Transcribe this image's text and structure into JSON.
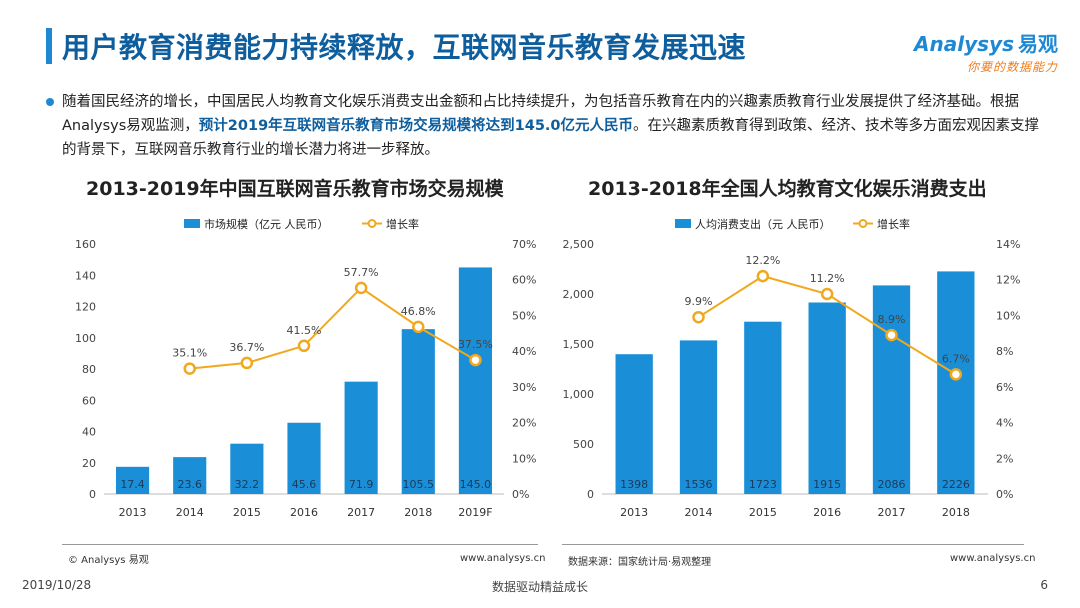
{
  "header": {
    "title": "用户教育消费能力持续释放，互联网音乐教育发展迅速",
    "brand_name": "Analysys",
    "brand_cn": "易观",
    "brand_slogan": "你要的数据能力"
  },
  "intro": {
    "part1": "随着国民经济的增长，中国居民人均教育文化娱乐消费支出金额和占比持续提升，为包括音乐教育在内的兴趣素质教育行业发展提供了经济基础。根据Analysys易观监测，",
    "highlight": "预计2019年互联网音乐教育市场交易规模将达到145.0亿元人民币",
    "part2": "。在兴趣素质教育得到政策、经济、技术等多方面宏观因素支撑的背景下，互联网音乐教育行业的增长潜力将进一步释放。"
  },
  "colors": {
    "bar": "#1a8fd8",
    "line": "#f2a81d",
    "title": "#0e5e9e"
  },
  "chart_data": [
    {
      "type": "bar",
      "title": "2013-2019年中国互联网音乐教育市场交易规模",
      "categories": [
        "2013",
        "2014",
        "2015",
        "2016",
        "2017",
        "2018",
        "2019F"
      ],
      "series": [
        {
          "name": "市场规模（亿元 人民币）",
          "type": "bar",
          "axis": "left",
          "values": [
            17.4,
            23.6,
            32.2,
            45.6,
            71.9,
            105.5,
            145.0
          ],
          "labels": [
            "17.4",
            "23.6",
            "32.2",
            "45.6",
            "71.9",
            "105.5",
            "145.0"
          ]
        },
        {
          "name": "增长率",
          "type": "line",
          "axis": "right",
          "values": [
            null,
            35.1,
            36.7,
            41.5,
            57.7,
            46.8,
            37.5
          ],
          "labels": [
            "",
            "35.1%",
            "36.7%",
            "41.5%",
            "57.7%",
            "46.8%",
            "37.5%"
          ]
        }
      ],
      "ylim": [
        0,
        160
      ],
      "yticks": [
        "0",
        "20",
        "40",
        "60",
        "80",
        "100",
        "120",
        "140",
        "160"
      ],
      "y2lim": [
        0,
        70
      ],
      "y2ticks": [
        "0%",
        "10%",
        "20%",
        "30%",
        "40%",
        "50%",
        "60%",
        "70%"
      ],
      "legend_position": "top",
      "grid": false
    },
    {
      "type": "bar",
      "title": "2013-2018年全国人均教育文化娱乐消费支出",
      "categories": [
        "2013",
        "2014",
        "2015",
        "2016",
        "2017",
        "2018"
      ],
      "series": [
        {
          "name": "人均消费支出（元 人民币）",
          "type": "bar",
          "axis": "left",
          "values": [
            1398,
            1536,
            1723,
            1915,
            2086,
            2226
          ],
          "labels": [
            "1398",
            "1536",
            "1723",
            "1915",
            "2086",
            "2226"
          ]
        },
        {
          "name": "增长率",
          "type": "line",
          "axis": "right",
          "values": [
            null,
            9.9,
            12.2,
            11.2,
            8.9,
            6.7
          ],
          "labels": [
            "",
            "9.9%",
            "12.2%",
            "11.2%",
            "8.9%",
            "6.7%"
          ]
        }
      ],
      "ylim": [
        0,
        2500
      ],
      "yticks": [
        "0",
        "500",
        "1,000",
        "1,500",
        "2,000",
        "2,500"
      ],
      "y2lim": [
        0,
        14
      ],
      "y2ticks": [
        "0%",
        "2%",
        "4%",
        "6%",
        "8%",
        "10%",
        "12%",
        "14%"
      ],
      "legend_position": "top",
      "grid": false
    }
  ],
  "footer": {
    "left_copyright": "© Analysys 易观",
    "left_url": "www.analysys.cn",
    "right_source": "数据来源：国家统计局·易观整理",
    "right_url": "www.analysys.cn"
  },
  "page": {
    "date": "2019/10/28",
    "slogan": "数据驱动精益成长",
    "number": "6"
  }
}
